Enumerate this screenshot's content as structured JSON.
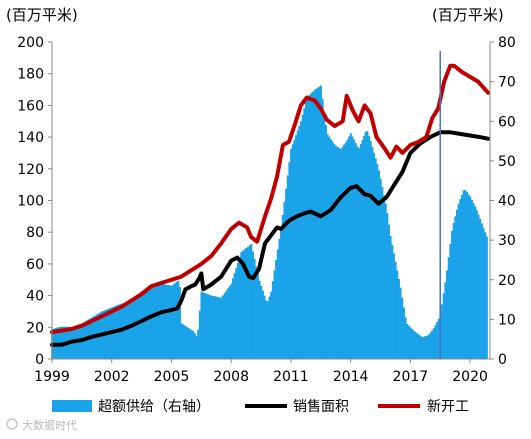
{
  "chart_data": {
    "type": "bar",
    "title": "",
    "left_axis": {
      "unit_label": "(百万平米)",
      "range": [
        0,
        200
      ],
      "ticks": [
        0,
        20,
        40,
        60,
        80,
        100,
        120,
        140,
        160,
        180,
        200
      ],
      "tick_labels": [
        "0",
        "20",
        "40",
        "60",
        "80",
        "100",
        "120",
        "140",
        "160",
        "180",
        "200"
      ]
    },
    "right_axis": {
      "unit_label": "(百万平米)",
      "range": [
        0,
        80
      ],
      "ticks": [
        0,
        10,
        20,
        30,
        40,
        50,
        60,
        70,
        80
      ],
      "tick_labels": [
        "0",
        "10",
        "20",
        "30",
        "40",
        "50",
        "60",
        "70",
        "80"
      ]
    },
    "x_axis": {
      "range": [
        1999,
        2021
      ],
      "ticks": [
        1999,
        2002,
        2005,
        2008,
        2011,
        2014,
        2017,
        2020
      ],
      "tick_labels": [
        "1999",
        "2002",
        "2005",
        "2008",
        "2011",
        "2014",
        "2017",
        "2020"
      ]
    },
    "grid": false,
    "legend_position": "bottom",
    "vertical_marker": {
      "x": 2018.5,
      "color": "#4472c4"
    },
    "series": [
      {
        "name": "超额供给（右轴）",
        "kind": "bar",
        "axis": "right",
        "color": "#1aa3e8",
        "points": [
          [
            1999.0,
            7.5
          ],
          [
            1999.3,
            8.0
          ],
          [
            1999.6,
            8.2
          ],
          [
            2000.0,
            8.0
          ],
          [
            2000.5,
            9.0
          ],
          [
            2001.0,
            10.5
          ],
          [
            2001.5,
            12.0
          ],
          [
            2002.0,
            13.0
          ],
          [
            2002.5,
            14.0
          ],
          [
            2003.0,
            14.5
          ],
          [
            2003.5,
            16.0
          ],
          [
            2004.0,
            18.0
          ],
          [
            2004.5,
            19.0
          ],
          [
            2005.0,
            18.5
          ],
          [
            2005.4,
            20.0
          ],
          [
            2005.5,
            9.0
          ],
          [
            2005.8,
            8.0
          ],
          [
            2006.1,
            7.0
          ],
          [
            2006.3,
            5.5
          ],
          [
            2006.5,
            17.0
          ],
          [
            2007.0,
            16.0
          ],
          [
            2007.5,
            15.5
          ],
          [
            2008.0,
            19.0
          ],
          [
            2008.5,
            27.0
          ],
          [
            2009.0,
            29.0
          ],
          [
            2009.4,
            20.0
          ],
          [
            2009.8,
            14.0
          ],
          [
            2010.0,
            17.0
          ],
          [
            2010.5,
            33.0
          ],
          [
            2011.0,
            53.0
          ],
          [
            2011.5,
            60.0
          ],
          [
            2011.8,
            66.0
          ],
          [
            2012.2,
            68.0
          ],
          [
            2012.5,
            69.0
          ],
          [
            2012.8,
            57.0
          ],
          [
            2013.2,
            54.0
          ],
          [
            2013.5,
            53.0
          ],
          [
            2013.8,
            55.0
          ],
          [
            2014.0,
            57.0
          ],
          [
            2014.4,
            53.0
          ],
          [
            2014.8,
            58.0
          ],
          [
            2015.0,
            55.0
          ],
          [
            2015.4,
            48.0
          ],
          [
            2015.8,
            38.0
          ],
          [
            2016.0,
            31.0
          ],
          [
            2016.5,
            18.0
          ],
          [
            2016.8,
            9.0
          ],
          [
            2017.2,
            7.0
          ],
          [
            2017.6,
            5.5
          ],
          [
            2017.9,
            6.0
          ],
          [
            2018.2,
            8.0
          ],
          [
            2018.5,
            11.0
          ],
          [
            2018.8,
            21.0
          ],
          [
            2019.1,
            33.0
          ],
          [
            2019.4,
            39.0
          ],
          [
            2019.7,
            43.0
          ],
          [
            2020.0,
            41.0
          ],
          [
            2020.3,
            38.0
          ],
          [
            2020.6,
            34.0
          ],
          [
            2020.9,
            30.0
          ]
        ]
      },
      {
        "name": "销售面积",
        "kind": "line",
        "axis": "left",
        "color": "#000000",
        "points": [
          [
            1999.0,
            9
          ],
          [
            1999.5,
            9
          ],
          [
            2000.0,
            11
          ],
          [
            2000.5,
            12
          ],
          [
            2001.0,
            14
          ],
          [
            2001.5,
            15.5
          ],
          [
            2002.0,
            17
          ],
          [
            2002.5,
            18.5
          ],
          [
            2003.0,
            21
          ],
          [
            2003.5,
            24
          ],
          [
            2004.0,
            27
          ],
          [
            2004.5,
            29.5
          ],
          [
            2005.0,
            31
          ],
          [
            2005.3,
            32
          ],
          [
            2005.5,
            37
          ],
          [
            2005.7,
            44
          ],
          [
            2006.0,
            46
          ],
          [
            2006.2,
            47
          ],
          [
            2006.4,
            51
          ],
          [
            2006.5,
            54
          ],
          [
            2006.6,
            44
          ],
          [
            2007.0,
            47
          ],
          [
            2007.5,
            52
          ],
          [
            2008.0,
            62
          ],
          [
            2008.3,
            64
          ],
          [
            2008.6,
            60
          ],
          [
            2008.9,
            52
          ],
          [
            2009.1,
            51
          ],
          [
            2009.4,
            57
          ],
          [
            2009.7,
            73
          ],
          [
            2010.0,
            78
          ],
          [
            2010.3,
            83
          ],
          [
            2010.5,
            82
          ],
          [
            2010.8,
            86
          ],
          [
            2011.0,
            88
          ],
          [
            2011.3,
            90
          ],
          [
            2011.7,
            92
          ],
          [
            2012.0,
            93
          ],
          [
            2012.5,
            90
          ],
          [
            2013.0,
            94
          ],
          [
            2013.5,
            102
          ],
          [
            2014.0,
            108
          ],
          [
            2014.3,
            109
          ],
          [
            2014.7,
            104
          ],
          [
            2015.0,
            103
          ],
          [
            2015.4,
            98
          ],
          [
            2015.8,
            102
          ],
          [
            2016.2,
            110
          ],
          [
            2016.6,
            118
          ],
          [
            2017.0,
            130
          ],
          [
            2017.5,
            136
          ],
          [
            2018.0,
            140
          ],
          [
            2018.5,
            143
          ],
          [
            2019.0,
            143
          ],
          [
            2019.5,
            142
          ],
          [
            2020.0,
            141
          ],
          [
            2020.5,
            140
          ],
          [
            2020.9,
            139
          ]
        ]
      },
      {
        "name": "新开工",
        "kind": "line",
        "axis": "left",
        "color": "#c00000",
        "points": [
          [
            1999.0,
            17
          ],
          [
            1999.5,
            18
          ],
          [
            2000.0,
            19
          ],
          [
            2000.5,
            21
          ],
          [
            2001.0,
            24
          ],
          [
            2001.5,
            27
          ],
          [
            2002.0,
            30
          ],
          [
            2002.5,
            33
          ],
          [
            2003.0,
            37
          ],
          [
            2003.5,
            41
          ],
          [
            2004.0,
            46
          ],
          [
            2004.5,
            48
          ],
          [
            2005.0,
            50
          ],
          [
            2005.5,
            52
          ],
          [
            2006.0,
            56
          ],
          [
            2006.5,
            60
          ],
          [
            2007.0,
            65
          ],
          [
            2007.5,
            73
          ],
          [
            2008.0,
            82
          ],
          [
            2008.4,
            86
          ],
          [
            2008.8,
            83
          ],
          [
            2009.0,
            77
          ],
          [
            2009.3,
            74
          ],
          [
            2009.7,
            90
          ],
          [
            2010.0,
            101
          ],
          [
            2010.3,
            115
          ],
          [
            2010.6,
            135
          ],
          [
            2010.9,
            137
          ],
          [
            2011.2,
            148
          ],
          [
            2011.5,
            160
          ],
          [
            2011.8,
            165
          ],
          [
            2012.2,
            163
          ],
          [
            2012.5,
            158
          ],
          [
            2012.8,
            151
          ],
          [
            2013.2,
            147
          ],
          [
            2013.6,
            150
          ],
          [
            2013.8,
            166
          ],
          [
            2014.1,
            157
          ],
          [
            2014.4,
            150
          ],
          [
            2014.7,
            160
          ],
          [
            2015.0,
            155
          ],
          [
            2015.3,
            140
          ],
          [
            2015.7,
            133
          ],
          [
            2016.0,
            127
          ],
          [
            2016.3,
            134
          ],
          [
            2016.6,
            130
          ],
          [
            2017.0,
            135
          ],
          [
            2017.4,
            137
          ],
          [
            2017.8,
            140
          ],
          [
            2018.1,
            152
          ],
          [
            2018.4,
            158
          ],
          [
            2018.7,
            175
          ],
          [
            2019.0,
            185
          ],
          [
            2019.2,
            185
          ],
          [
            2019.6,
            181
          ],
          [
            2020.0,
            178
          ],
          [
            2020.4,
            175
          ],
          [
            2020.9,
            168
          ]
        ]
      }
    ]
  },
  "watermark": "大数据时代"
}
